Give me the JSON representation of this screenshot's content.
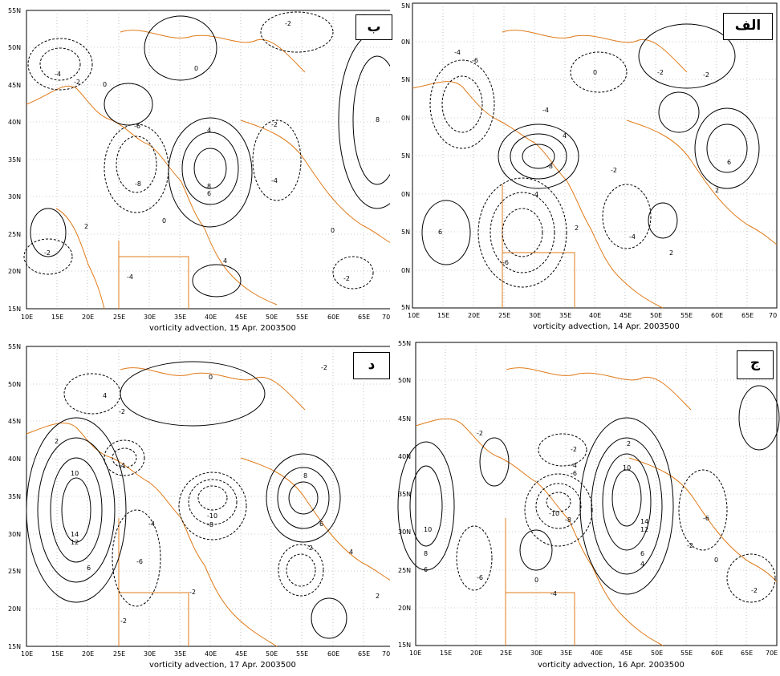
{
  "colors": {
    "contour": "#000000",
    "coast": "#e07b1a",
    "grid": "#9a9a9a",
    "background": "#ffffff"
  },
  "panels": [
    {
      "id": "b",
      "label": "ب",
      "caption": "vorticity advection, 15 Apr. 2003500",
      "lon_ticks": [
        "10E",
        "15E",
        "20E",
        "25E",
        "30E",
        "35E",
        "40E",
        "45E",
        "50E",
        "55E",
        "60E",
        "65E",
        "70E"
      ],
      "lat_ticks": [
        "55N",
        "50N",
        "45N",
        "40N",
        "35N",
        "30N",
        "25N",
        "20N",
        "15N"
      ],
      "contour_labels": [
        "2",
        "-4",
        "-2",
        "0",
        "-2",
        "-6",
        "-2",
        "-4",
        "-8",
        "4",
        "8",
        "6",
        "-2",
        "-4",
        "2",
        "0",
        "-2",
        "0",
        "4",
        "2",
        "-2",
        "0",
        "-4",
        "-2",
        "8",
        "-2",
        "0",
        "-2",
        "2",
        "-4"
      ]
    },
    {
      "id": "alef",
      "label": "الف",
      "caption": "vorticity advection, 14 Apr. 2003500",
      "lon_ticks": [
        "10E",
        "15E",
        "20E",
        "25E",
        "30E",
        "35E",
        "40E",
        "45E",
        "50E",
        "55E",
        "60E",
        "65E",
        "70"
      ],
      "lat_ticks": [
        "5N",
        "0N",
        "5N",
        "0N",
        "5N",
        "0N",
        "5N",
        "0N",
        "5N"
      ],
      "contour_labels": [
        "-4",
        "-6",
        "0",
        "-2",
        "-2",
        "-4",
        "2",
        "-8",
        "0",
        "4",
        "-2",
        "6",
        "2",
        "0",
        "-2",
        "-6",
        "6",
        "-4",
        "-4",
        "2",
        "4",
        "-6",
        "6",
        "2",
        "-2",
        "0",
        "-2",
        "2"
      ]
    },
    {
      "id": "dal",
      "label": "د",
      "caption": "vorticity advection, 17 Apr. 2003500",
      "lon_ticks": [
        "10E",
        "15E",
        "20E",
        "25E",
        "30E",
        "35E",
        "40E",
        "45E",
        "50E",
        "55E",
        "60E",
        "65E",
        "70E"
      ],
      "lat_ticks": [
        "55N",
        "50N",
        "45N",
        "40N",
        "35N",
        "30N",
        "25N",
        "20N",
        "15N"
      ],
      "contour_labels": [
        "0",
        "-2",
        "4",
        "-2",
        "2",
        "-2",
        "-4",
        "-6",
        "2",
        "10",
        "14",
        "12",
        "6",
        "4",
        "-4",
        "-6",
        "-2",
        "-10",
        "-8",
        "0",
        "8",
        "6",
        "-2",
        "-4",
        "-6",
        "-2",
        "4",
        "0",
        "-2",
        "2"
      ]
    },
    {
      "id": "jim",
      "label": "ج",
      "caption": "vorticity advection, 16 Apr. 2003500",
      "lon_ticks": [
        "10E",
        "15E",
        "20E",
        "25E",
        "30E",
        "35E",
        "40E",
        "45E",
        "50E",
        "55E",
        "60E",
        "65E",
        "70E"
      ],
      "lat_ticks": [
        "55N",
        "50N",
        "45N",
        "40N",
        "35N",
        "30N",
        "25N",
        "20N",
        "15N"
      ],
      "contour_labels": [
        "-2",
        "-2",
        "2",
        "-2",
        "-4",
        "-6",
        "-8",
        "-10",
        "2",
        "10",
        "14",
        "12",
        "8",
        "6",
        "4",
        "-6",
        "0",
        "-2",
        "-4",
        "-6",
        "2",
        "0",
        "-2",
        "-2",
        "10",
        "8",
        "6"
      ]
    }
  ]
}
